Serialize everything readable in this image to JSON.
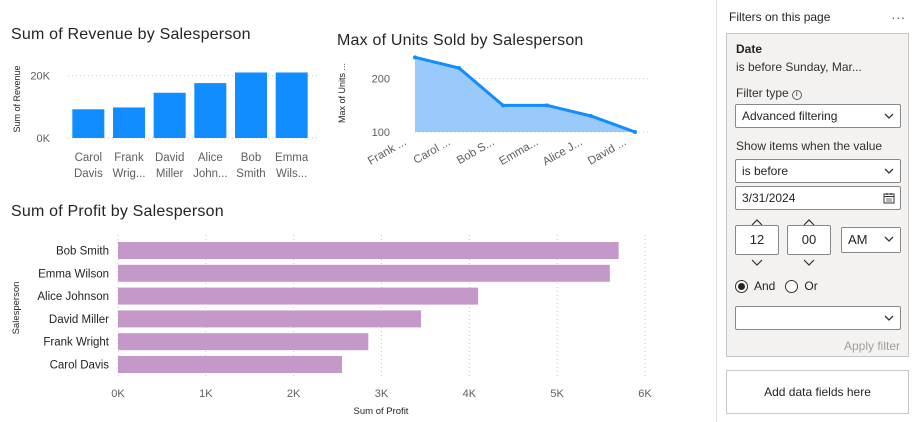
{
  "revenue_chart": {
    "title": "Sum of Revenue by Salesperson",
    "ylabel": "Sum of Revenue",
    "color": "#118DFF",
    "chart_data": {
      "type": "bar",
      "categories": [
        "Carol Davis",
        "Frank Wright",
        "David Miller",
        "Alice Johnson",
        "Bob Smith",
        "Emma Wilson"
      ],
      "category_lines": [
        [
          "Carol",
          "Davis"
        ],
        [
          "Frank",
          "Wrig..."
        ],
        [
          "David",
          "Miller"
        ],
        [
          "Alice",
          "John..."
        ],
        [
          "Bob",
          "Smith"
        ],
        [
          "Emma",
          "Wils..."
        ]
      ],
      "values": [
        9200,
        9800,
        14500,
        17600,
        21000,
        21000
      ],
      "yticks": [
        0,
        20000
      ],
      "ytick_labels": [
        "0K",
        "20K"
      ],
      "ylim": [
        0,
        25000
      ]
    }
  },
  "units_chart": {
    "title": "Max of Units Sold by Salesperson",
    "ylabel": "Max of Units ...",
    "line_color": "#118DFF",
    "fill_color": "#99CAFB",
    "chart_data": {
      "type": "area",
      "categories": [
        "Frank ...",
        "Carol ...",
        "Bob S...",
        "Emma...",
        "Alice J...",
        "David ..."
      ],
      "values": [
        240,
        220,
        150,
        150,
        130,
        100
      ],
      "yticks": [
        100,
        200
      ],
      "ylim": [
        100,
        250
      ]
    }
  },
  "profit_chart": {
    "title": "Sum of Profit by Salesperson",
    "xlabel": "Sum of Profit",
    "ylabel": "Salesperson",
    "color": "#C499CA",
    "chart_data": {
      "type": "bar",
      "orientation": "horizontal",
      "categories": [
        "Bob Smith",
        "Emma Wilson",
        "Alice Johnson",
        "David Miller",
        "Frank Wright",
        "Carol Davis"
      ],
      "values": [
        5700,
        5600,
        4100,
        3450,
        2850,
        2550
      ],
      "xticks": [
        0,
        1000,
        2000,
        3000,
        4000,
        5000,
        6000
      ],
      "xtick_labels": [
        "0K",
        "1K",
        "2K",
        "3K",
        "4K",
        "5K",
        "6K"
      ],
      "xlim": [
        0,
        6000
      ]
    }
  },
  "filter_pane": {
    "header": "Filters on this page",
    "more": "...",
    "card": {
      "field": "Date",
      "summary": "is before Sunday, Mar...",
      "filter_type_label": "Filter type",
      "filter_type_value": "Advanced filtering",
      "show_items_label": "Show items when the value",
      "condition_value": "is before",
      "date_value": "3/31/2024",
      "hour": "12",
      "minute": "00",
      "ampm": "AM",
      "and_label": "And",
      "or_label": "Or",
      "second_condition_value": "",
      "apply_label": "Apply filter"
    },
    "add_fields_label": "Add data fields here"
  }
}
